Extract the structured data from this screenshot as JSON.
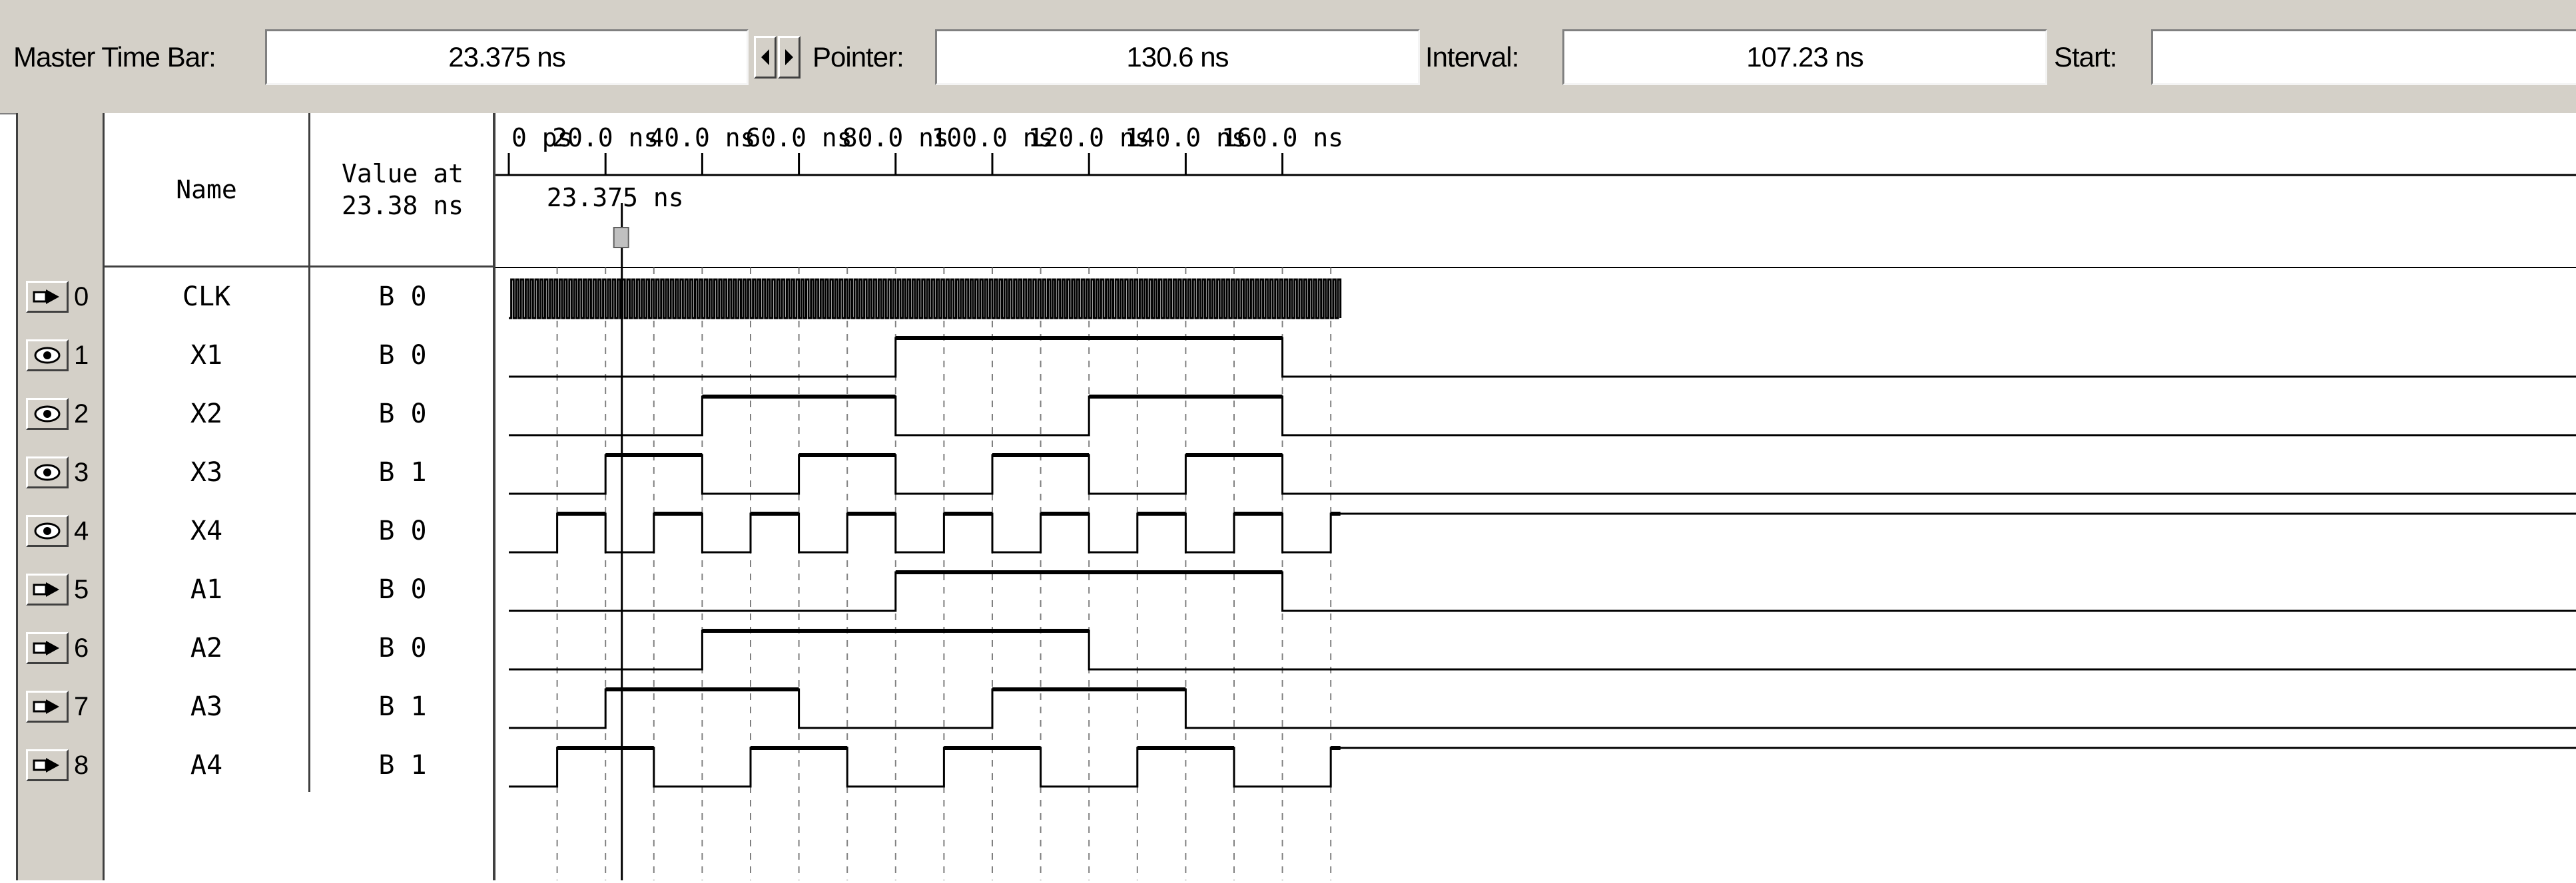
{
  "toolbar": {
    "master_time_bar_label": "Master Time Bar:",
    "master_time_bar_value": "23.375 ns",
    "pointer_label": "Pointer:",
    "pointer_value": "130.6 ns",
    "interval_label": "Interval:",
    "interval_value": "107.23 ns",
    "start_label": "Start:",
    "start_value": ""
  },
  "header": {
    "name_label": "Name",
    "value_label_line1": "Value at",
    "value_label_line2": "23.38 ns"
  },
  "timeline": {
    "ticks": [
      {
        "t": 0,
        "label": "0 ps"
      },
      {
        "t": 20,
        "label": "20.0 ns"
      },
      {
        "t": 40,
        "label": "40.0 ns"
      },
      {
        "t": 60,
        "label": "60.0 ns"
      },
      {
        "t": 80,
        "label": "80.0 ns"
      },
      {
        "t": 100,
        "label": "100.0 ns"
      },
      {
        "t": 120,
        "label": "120.0 ns"
      },
      {
        "t": 140,
        "label": "140.0 ns"
      },
      {
        "t": 160,
        "label": "160.0 ns"
      }
    ],
    "visible_end_ns": 172,
    "cursor_ns": 23.375,
    "cursor_label": "23.375 ns",
    "clk_period_ns": 1
  },
  "signals": [
    {
      "index": "0",
      "name": "CLK",
      "value": "B 0",
      "kind": "input",
      "clock": true
    },
    {
      "index": "1",
      "name": "X1",
      "value": "B 0",
      "kind": "output",
      "init": 0,
      "edges": [
        80,
        160
      ]
    },
    {
      "index": "2",
      "name": "X2",
      "value": "B 0",
      "kind": "output",
      "init": 0,
      "edges": [
        40,
        80,
        120,
        160
      ]
    },
    {
      "index": "3",
      "name": "X3",
      "value": "B 1",
      "kind": "output",
      "init": 0,
      "edges": [
        20,
        40,
        60,
        80,
        100,
        120,
        140,
        160
      ]
    },
    {
      "index": "4",
      "name": "X4",
      "value": "B 0",
      "kind": "output",
      "init": 0,
      "edges": [
        10,
        20,
        30,
        40,
        50,
        60,
        70,
        80,
        90,
        100,
        110,
        120,
        130,
        140,
        150,
        160,
        170
      ]
    },
    {
      "index": "5",
      "name": "A1",
      "value": "B 0",
      "kind": "input",
      "init": 0,
      "edges": [
        80,
        160
      ]
    },
    {
      "index": "6",
      "name": "A2",
      "value": "B 0",
      "kind": "input",
      "init": 0,
      "edges": [
        40,
        120
      ]
    },
    {
      "index": "7",
      "name": "A3",
      "value": "B 1",
      "kind": "input",
      "init": 0,
      "edges": [
        20,
        60,
        100,
        140
      ]
    },
    {
      "index": "8",
      "name": "A4",
      "value": "B 1",
      "kind": "input",
      "init": 0,
      "edges": [
        10,
        30,
        50,
        70,
        90,
        110,
        130,
        150,
        170
      ]
    }
  ],
  "colors": {
    "panel_bg": "#d4d0c8",
    "wave": "#000000",
    "grid": "#808080"
  }
}
